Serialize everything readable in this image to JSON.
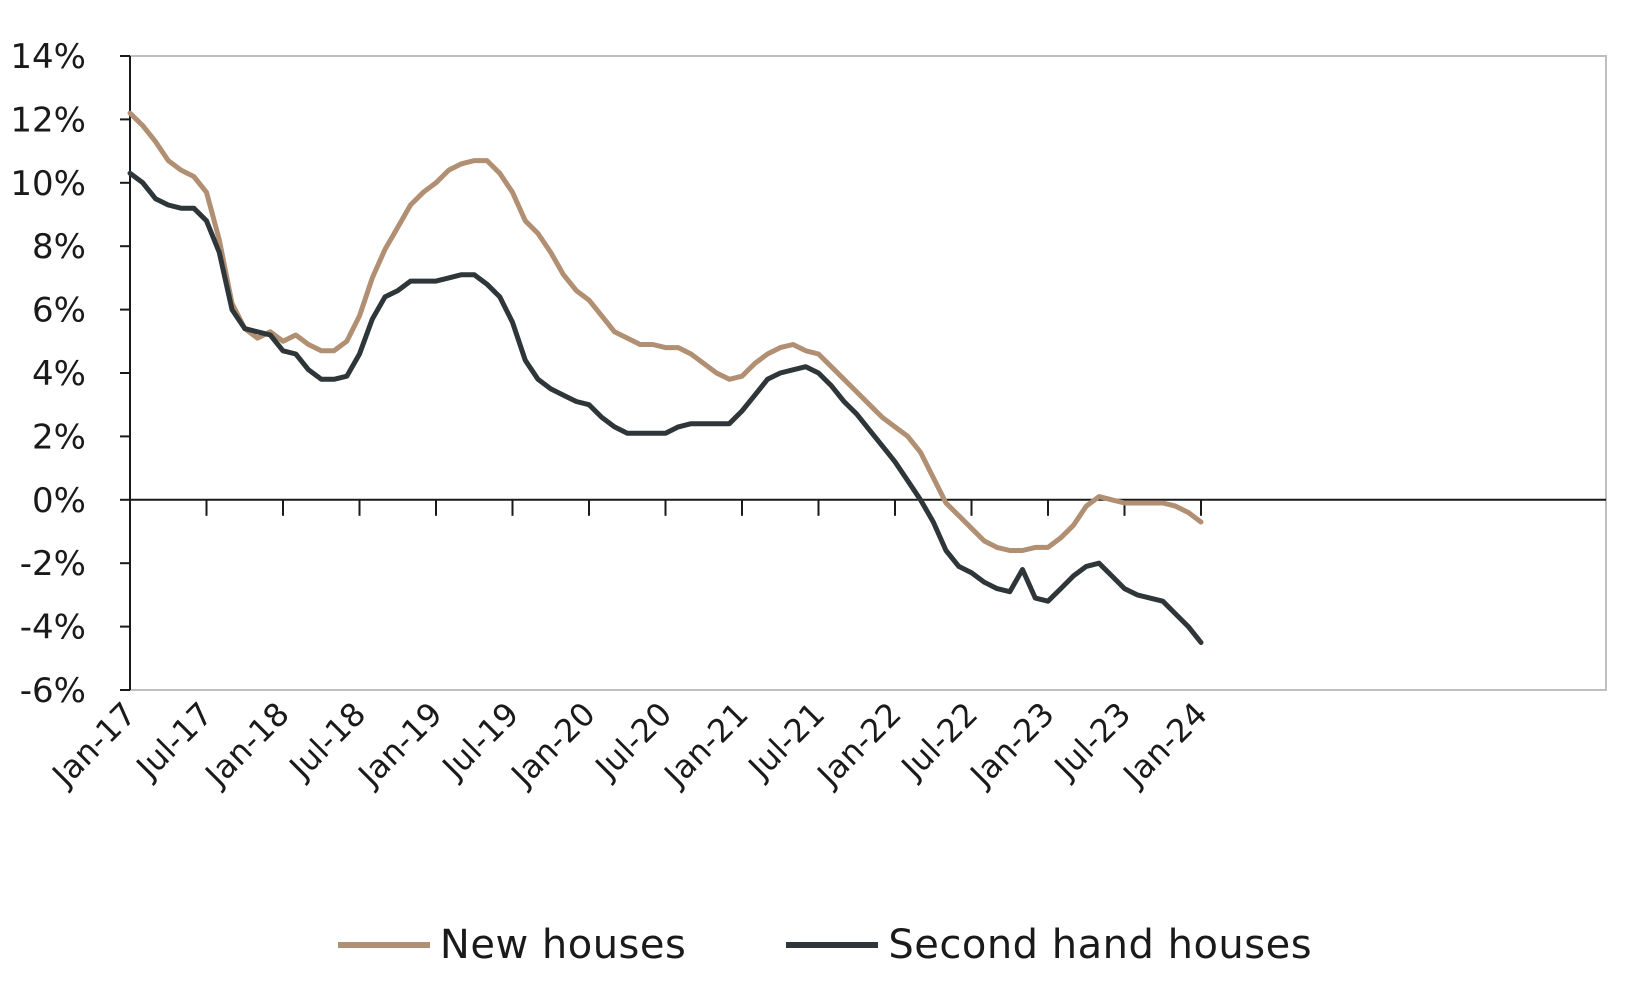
{
  "chart_data": {
    "type": "line",
    "title": "",
    "xlabel": "",
    "ylabel": "",
    "ylim": [
      -6,
      14
    ],
    "y_ticks": [
      "14%",
      "12%",
      "10%",
      "8%",
      "6%",
      "4%",
      "2%",
      "0%",
      "-2%",
      "-4%",
      "-6%"
    ],
    "x_tick_labels": [
      "Jan-17",
      "Jul-17",
      "Jan-18",
      "Jul-18",
      "Jan-19",
      "Jul-19",
      "Jan-20",
      "Jul-20",
      "Jan-21",
      "Jul-21",
      "Jan-22",
      "Jul-22",
      "Jan-23",
      "Jul-23",
      "Jan-24"
    ],
    "grid": false,
    "legend_position": "bottom-center",
    "series": [
      {
        "name": "New houses",
        "color": "#b08f72",
        "values": [
          12.2,
          11.8,
          11.3,
          10.7,
          10.4,
          10.2,
          9.7,
          8.2,
          6.2,
          5.4,
          5.1,
          5.3,
          5.0,
          5.2,
          4.9,
          4.7,
          4.7,
          5.0,
          5.8,
          7.0,
          7.9,
          8.6,
          9.3,
          9.7,
          10.0,
          10.4,
          10.6,
          10.7,
          10.7,
          10.3,
          9.7,
          8.8,
          8.4,
          7.8,
          7.1,
          6.6,
          6.3,
          5.8,
          5.3,
          5.1,
          4.9,
          4.9,
          4.8,
          4.8,
          4.6,
          4.3,
          4.0,
          3.8,
          3.9,
          4.3,
          4.6,
          4.8,
          4.9,
          4.7,
          4.6,
          4.2,
          3.8,
          3.4,
          3.0,
          2.6,
          2.3,
          2.0,
          1.5,
          0.7,
          -0.1,
          -0.5,
          -0.9,
          -1.3,
          -1.5,
          -1.6,
          -1.6,
          -1.5,
          -1.5,
          -1.2,
          -0.8,
          -0.2,
          0.1,
          0.0,
          -0.1,
          -0.1,
          -0.1,
          -0.1,
          -0.2,
          -0.4,
          -0.7
        ]
      },
      {
        "name": "Second hand houses",
        "color": "#2e3639",
        "values": [
          10.3,
          10.0,
          9.5,
          9.3,
          9.2,
          9.2,
          8.8,
          7.8,
          6.0,
          5.4,
          5.3,
          5.2,
          4.7,
          4.6,
          4.1,
          3.8,
          3.8,
          3.9,
          4.6,
          5.7,
          6.4,
          6.6,
          6.9,
          6.9,
          6.9,
          7.0,
          7.1,
          7.1,
          6.8,
          6.4,
          5.6,
          4.4,
          3.8,
          3.5,
          3.3,
          3.1,
          3.0,
          2.6,
          2.3,
          2.1,
          2.1,
          2.1,
          2.1,
          2.3,
          2.4,
          2.4,
          2.4,
          2.4,
          2.8,
          3.3,
          3.8,
          4.0,
          4.1,
          4.2,
          4.0,
          3.6,
          3.1,
          2.7,
          2.2,
          1.7,
          1.2,
          0.6,
          0.0,
          -0.7,
          -1.6,
          -2.1,
          -2.3,
          -2.6,
          -2.8,
          -2.9,
          -2.2,
          -3.1,
          -3.2,
          -2.8,
          -2.4,
          -2.1,
          -2.0,
          -2.4,
          -2.8,
          -3.0,
          -3.1,
          -3.2,
          -3.6,
          -4.0,
          -4.5
        ]
      }
    ]
  }
}
